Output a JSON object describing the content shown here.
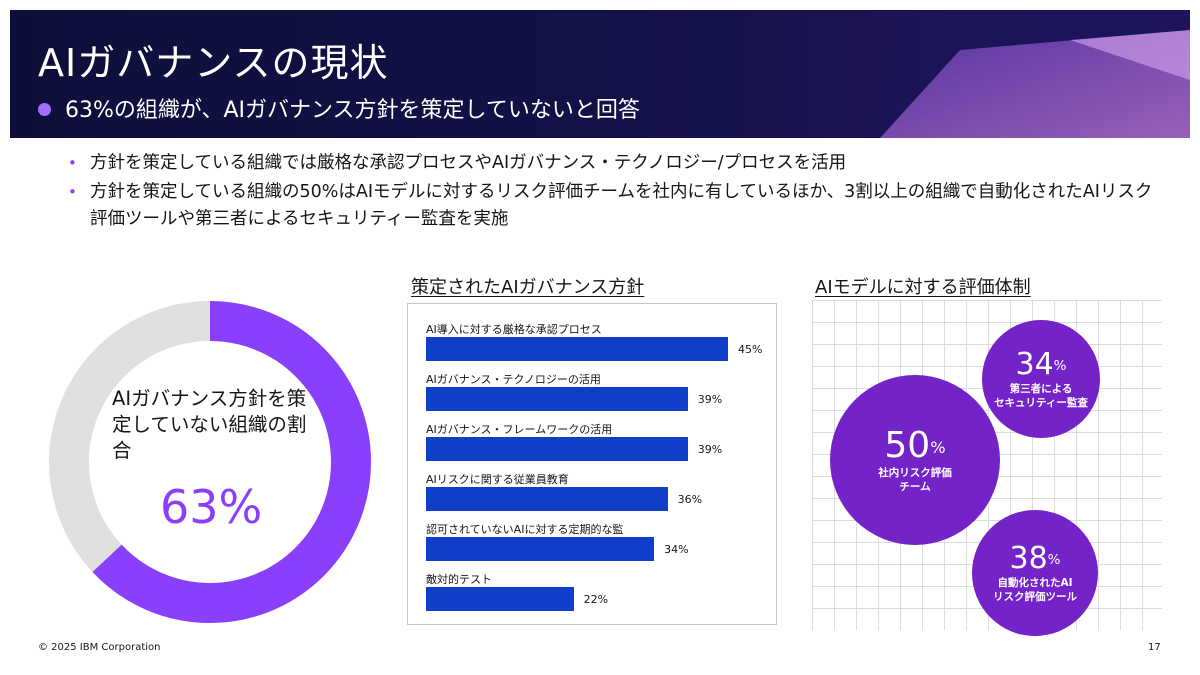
{
  "header": {
    "title": "AIガバナンスの現状",
    "subtitle": "63%の組織が、AIガバナンス方針を策定していないと回答"
  },
  "bullets": [
    "方針を策定している組織では厳格な承認プロセスやAIガバナンス・テクノロジー/プロセスを活用",
    "方針を策定している組織の50%はAIモデルに対するリスク評価チームを社内に有しているほか、3割以上の組織で自動化されたAIリスク評価ツールや第三者によるセキュリティー監査を実施"
  ],
  "donut": {
    "label": "AIガバナンス方針を策定していない組織の割合",
    "value_text": "63%",
    "fraction": 0.63,
    "colors": {
      "filled": "#8a3ffc",
      "rest": "#e0e0e0"
    }
  },
  "bar_section": {
    "title": "策定されたAIガバナンス方針"
  },
  "eval_section": {
    "title": "AIモデルに対する評価体制"
  },
  "chart_data": [
    {
      "type": "bar",
      "title": "策定されたAIガバナンス方針",
      "orientation": "horizontal",
      "categories": [
        "AI導入に対する厳格な承認プロセス",
        "AIガバナンス・テクノロジーの活用",
        "AIガバナンス・フレームワークの活用",
        "AIリスクに関する従業員教育",
        "認可されていないAIに対する定期的な監",
        "敵対的テスト"
      ],
      "values": [
        45,
        39,
        39,
        36,
        34,
        22
      ],
      "value_labels": [
        "45%",
        "39%",
        "39%",
        "36%",
        "34%",
        "22%"
      ],
      "bar_color": "#0f3ec8"
    },
    {
      "type": "bubble",
      "title": "AIモデルに対する評価体制",
      "items": [
        {
          "value": 50,
          "pct": "50",
          "label_lines": [
            "社内リスク評価",
            "チーム"
          ]
        },
        {
          "value": 34,
          "pct": "34",
          "label_lines": [
            "第三者による",
            "セキュリティー監査"
          ]
        },
        {
          "value": 38,
          "pct": "38",
          "label_lines": [
            "自動化されたAI",
            "リスク評価ツール"
          ]
        }
      ],
      "unit": "%",
      "bubble_color": "#7323c8"
    }
  ],
  "footer": {
    "copyright": "© 2025 IBM Corporation",
    "page_number": "17"
  }
}
